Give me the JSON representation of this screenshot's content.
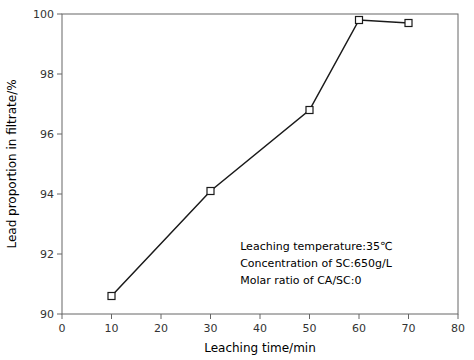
{
  "chart_data": {
    "type": "line",
    "x": [
      10,
      30,
      50,
      60,
      70
    ],
    "values": [
      90.6,
      94.1,
      96.8,
      99.8,
      99.7
    ],
    "xlabel": "Leaching time/min",
    "ylabel": "Lead proportion in filtrate/%",
    "xlim": [
      0,
      80
    ],
    "ylim": [
      90,
      100
    ],
    "xticks": [
      0,
      10,
      20,
      30,
      40,
      50,
      60,
      70,
      80
    ],
    "yticks": [
      90,
      92,
      94,
      96,
      98,
      100
    ],
    "annotations": [
      "Leaching temperature:35℃",
      "Concentration of SC:650g/L",
      "Molar ratio of CA/SC:0"
    ],
    "color": "#1a1a1a",
    "marker": "square",
    "grid": false
  }
}
